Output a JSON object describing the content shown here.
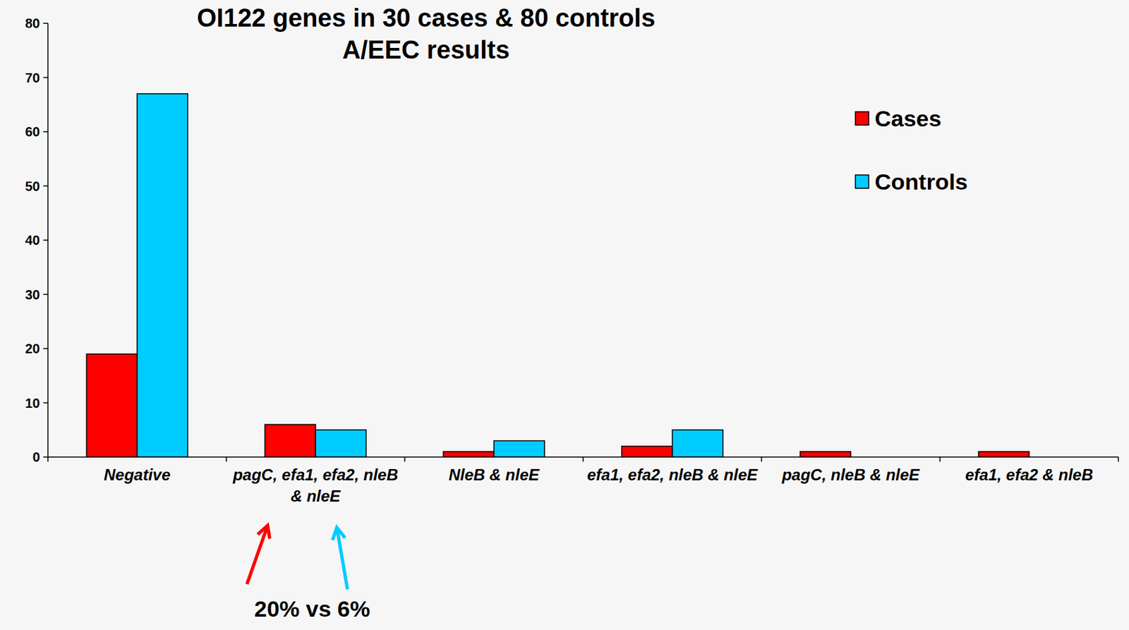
{
  "chart_data": {
    "type": "bar",
    "title": "OI122 genes in 30 cases & 80 controls",
    "subtitle": "A/EEC results",
    "categories": [
      "Negative",
      "pagC, efa1, efa2, nleB & nleE",
      "NleB & nleE",
      "efa1, efa2, nleB & nleE",
      "pagC, nleB & nleE",
      "efa1, efa2 & nleB"
    ],
    "series": [
      {
        "name": "Cases",
        "color": "#ff0000",
        "values": [
          19,
          6,
          1,
          2,
          1,
          1
        ]
      },
      {
        "name": "Controls",
        "color": "#00ccff",
        "values": [
          67,
          5,
          3,
          5,
          0,
          0
        ]
      }
    ],
    "ylim": [
      0,
      80
    ],
    "yticks": [
      0,
      10,
      20,
      30,
      40,
      50,
      60,
      70,
      80
    ],
    "grid": false,
    "legend": "top-right",
    "annotation": "20% vs 6%"
  }
}
